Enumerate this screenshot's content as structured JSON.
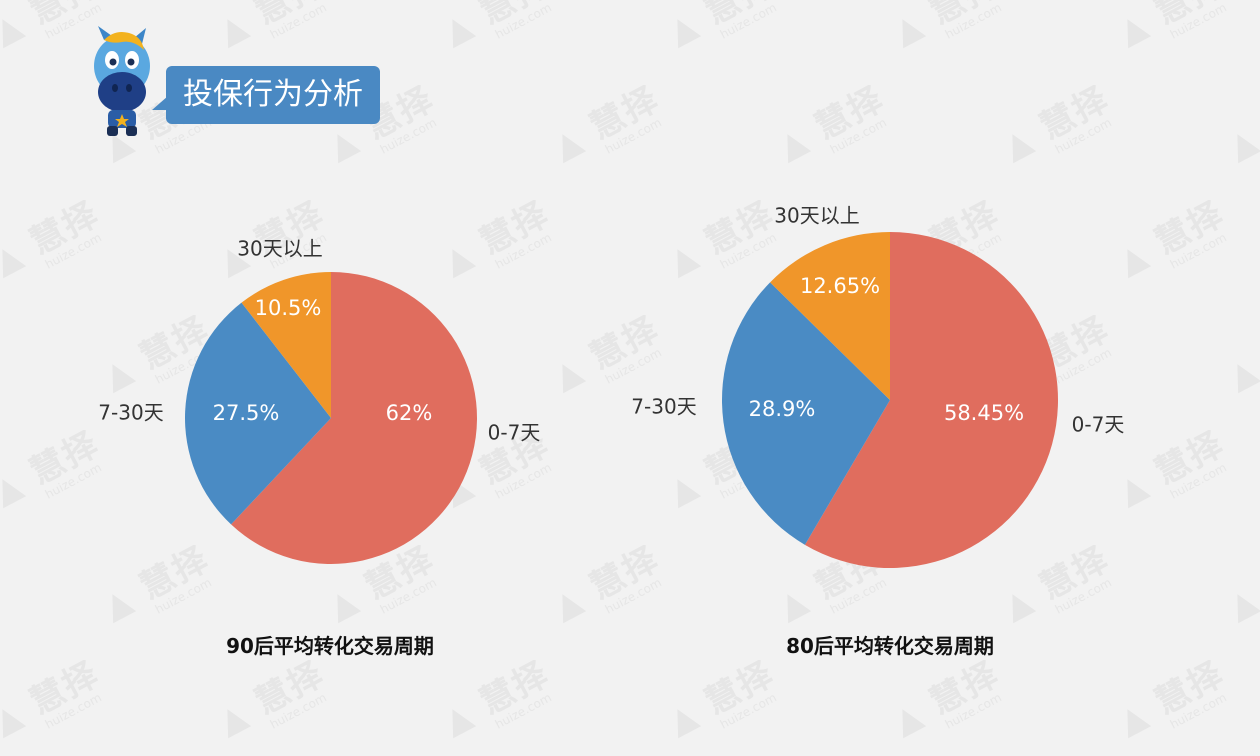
{
  "header": {
    "title": "投保行为分析"
  },
  "watermark": {
    "brand": "慧择",
    "domain": "huize.com"
  },
  "colors": {
    "slice_0_7": "#e06d5e",
    "slice_7_30": "#4a8bc4",
    "slice_30plus": "#f0962a",
    "bubble": "#4a89c3"
  },
  "chart_data": [
    {
      "type": "pie",
      "title": "90后平均转化交易周期",
      "categories": [
        "0-7天",
        "7-30天",
        "30天以上"
      ],
      "values": [
        62,
        27.5,
        10.5
      ],
      "value_labels": [
        "62%",
        "27.5%",
        "10.5%"
      ],
      "colors": [
        "#e06d5e",
        "#4a8bc4",
        "#f0962a"
      ],
      "start": "12 o'clock",
      "direction": "clockwise"
    },
    {
      "type": "pie",
      "title": "80后平均转化交易周期",
      "categories": [
        "0-7天",
        "7-30天",
        "30天以上"
      ],
      "values": [
        58.45,
        28.9,
        12.65
      ],
      "value_labels": [
        "58.45%",
        "28.9%",
        "12.65%"
      ],
      "colors": [
        "#e06d5e",
        "#4a8bc4",
        "#f0962a"
      ],
      "start": "12 o'clock",
      "direction": "clockwise"
    }
  ]
}
